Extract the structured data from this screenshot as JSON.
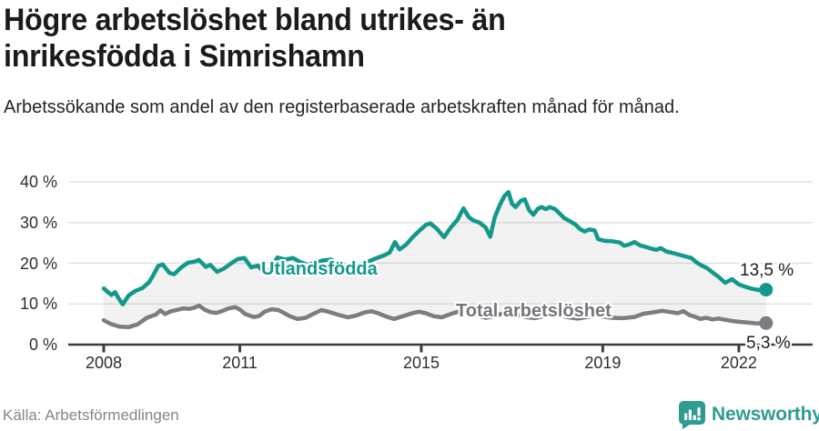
{
  "header": {
    "title": "Högre arbetslöshet bland utrikes- än inrikesfödda i Simrishamn",
    "subtitle": "Arbetssökande som andel av den registerbaserade arbetskraften månad för månad."
  },
  "footer": {
    "source": "Källa: Arbetsförmedlingen",
    "brand": "Newsworthy"
  },
  "colors": {
    "accent_teal": "#12998c",
    "line_gray": "#7c7d82",
    "label_gray": "#75767b",
    "brand_teal": "#2f9c92",
    "axis": "#3d3d3d",
    "grid": "#e4e4e4",
    "band_fill": "rgba(0,0,0,0.05)"
  },
  "chart_data": {
    "type": "line",
    "title": "Högre arbetslöshet bland utrikes- än inrikesfödda i Simrishamn",
    "subtitle": "Arbetssökande som andel av den registerbaserade arbetskraften månad för månad.",
    "grid": true,
    "legend_position": "inline",
    "x_axis": {
      "range": [
        2008,
        2022.6
      ],
      "ticks": [
        {
          "label": "2008",
          "year": 2008
        },
        {
          "label": "2011",
          "year": 2011
        },
        {
          "label": "2015",
          "year": 2015
        },
        {
          "label": "2019",
          "year": 2019
        },
        {
          "label": "2022",
          "year": 2022
        }
      ]
    },
    "y_axis": {
      "unit": "%",
      "range": [
        0,
        40
      ],
      "ticks": [
        {
          "label": "40 %",
          "value": 40
        },
        {
          "label": "30 %",
          "value": 30
        },
        {
          "label": "20 %",
          "value": 20
        },
        {
          "label": "10 %",
          "value": 10
        },
        {
          "label": "0 %",
          "value": 0
        }
      ]
    },
    "series": [
      {
        "name": "Utlandsfödda",
        "color": "#12998c",
        "end_label": "13,5 %",
        "end_value": 13.5,
        "points": [
          [
            2008.0,
            13.8
          ],
          [
            2008.08,
            13.0
          ],
          [
            2008.17,
            12.2
          ],
          [
            2008.25,
            12.9
          ],
          [
            2008.33,
            11.3
          ],
          [
            2008.42,
            9.9
          ],
          [
            2008.55,
            12.1
          ],
          [
            2008.7,
            13.2
          ],
          [
            2008.85,
            13.9
          ],
          [
            2009.0,
            15.3
          ],
          [
            2009.1,
            17.2
          ],
          [
            2009.2,
            19.3
          ],
          [
            2009.3,
            19.7
          ],
          [
            2009.45,
            17.6
          ],
          [
            2009.55,
            17.3
          ],
          [
            2009.7,
            18.9
          ],
          [
            2009.85,
            20.1
          ],
          [
            2010.0,
            20.4
          ],
          [
            2010.1,
            20.8
          ],
          [
            2010.25,
            19.1
          ],
          [
            2010.35,
            19.6
          ],
          [
            2010.5,
            17.9
          ],
          [
            2010.65,
            18.7
          ],
          [
            2010.8,
            19.9
          ],
          [
            2010.95,
            21.0
          ],
          [
            2011.1,
            21.3
          ],
          [
            2011.25,
            19.0
          ],
          [
            2011.4,
            19.4
          ],
          [
            2011.5,
            18.2
          ],
          [
            2011.62,
            17.7
          ],
          [
            2011.83,
            21.4
          ],
          [
            2012.0,
            20.9
          ],
          [
            2012.17,
            21.3
          ],
          [
            2012.33,
            20.3
          ],
          [
            2012.5,
            19.6
          ],
          [
            2012.67,
            20.1
          ],
          [
            2012.83,
            20.7
          ],
          [
            2013.0,
            20.9
          ],
          [
            2013.17,
            20.1
          ],
          [
            2013.33,
            19.4
          ],
          [
            2013.5,
            19.0
          ],
          [
            2013.67,
            19.6
          ],
          [
            2013.83,
            20.4
          ],
          [
            2014.0,
            21.2
          ],
          [
            2014.17,
            21.9
          ],
          [
            2014.3,
            22.6
          ],
          [
            2014.42,
            25.2
          ],
          [
            2014.52,
            23.4
          ],
          [
            2014.67,
            24.6
          ],
          [
            2014.8,
            26.3
          ],
          [
            2014.95,
            27.9
          ],
          [
            2015.1,
            29.4
          ],
          [
            2015.2,
            29.8
          ],
          [
            2015.35,
            28.4
          ],
          [
            2015.5,
            26.4
          ],
          [
            2015.65,
            28.8
          ],
          [
            2015.8,
            30.7
          ],
          [
            2015.93,
            33.5
          ],
          [
            2016.05,
            31.3
          ],
          [
            2016.15,
            30.5
          ],
          [
            2016.28,
            30.0
          ],
          [
            2016.42,
            28.8
          ],
          [
            2016.52,
            26.5
          ],
          [
            2016.62,
            31.3
          ],
          [
            2016.73,
            34.3
          ],
          [
            2016.83,
            36.5
          ],
          [
            2016.92,
            37.5
          ],
          [
            2017.0,
            34.6
          ],
          [
            2017.08,
            33.8
          ],
          [
            2017.2,
            35.4
          ],
          [
            2017.28,
            35.7
          ],
          [
            2017.38,
            33.0
          ],
          [
            2017.47,
            31.9
          ],
          [
            2017.57,
            33.4
          ],
          [
            2017.65,
            33.8
          ],
          [
            2017.75,
            33.3
          ],
          [
            2017.83,
            33.8
          ],
          [
            2017.95,
            33.3
          ],
          [
            2018.05,
            32.2
          ],
          [
            2018.15,
            31.1
          ],
          [
            2018.28,
            30.3
          ],
          [
            2018.4,
            29.5
          ],
          [
            2018.5,
            28.4
          ],
          [
            2018.6,
            27.8
          ],
          [
            2018.7,
            28.3
          ],
          [
            2018.82,
            28.1
          ],
          [
            2018.9,
            25.9
          ],
          [
            2019.05,
            25.5
          ],
          [
            2019.2,
            25.4
          ],
          [
            2019.38,
            25.1
          ],
          [
            2019.47,
            24.3
          ],
          [
            2019.6,
            24.7
          ],
          [
            2019.7,
            25.2
          ],
          [
            2019.82,
            24.4
          ],
          [
            2019.95,
            24.0
          ],
          [
            2020.07,
            23.6
          ],
          [
            2020.18,
            23.3
          ],
          [
            2020.28,
            23.7
          ],
          [
            2020.4,
            22.9
          ],
          [
            2020.55,
            22.5
          ],
          [
            2020.75,
            21.9
          ],
          [
            2020.95,
            21.3
          ],
          [
            2021.07,
            20.2
          ],
          [
            2021.17,
            19.5
          ],
          [
            2021.3,
            18.8
          ],
          [
            2021.45,
            17.5
          ],
          [
            2021.55,
            16.7
          ],
          [
            2021.7,
            15.2
          ],
          [
            2021.85,
            16.1
          ],
          [
            2022.0,
            14.8
          ],
          [
            2022.15,
            14.2
          ],
          [
            2022.3,
            13.7
          ],
          [
            2022.45,
            13.4
          ],
          [
            2022.6,
            13.5
          ]
        ]
      },
      {
        "name": "Total arbetslöshet",
        "color": "#7c7d82",
        "end_label": "5,3 %",
        "end_value": 5.3,
        "points": [
          [
            2008.0,
            6.0
          ],
          [
            2008.15,
            5.1
          ],
          [
            2008.35,
            4.4
          ],
          [
            2008.55,
            4.3
          ],
          [
            2008.75,
            5.0
          ],
          [
            2008.95,
            6.6
          ],
          [
            2009.15,
            7.4
          ],
          [
            2009.25,
            8.4
          ],
          [
            2009.35,
            7.5
          ],
          [
            2009.48,
            8.2
          ],
          [
            2009.6,
            8.5
          ],
          [
            2009.75,
            8.9
          ],
          [
            2009.9,
            8.8
          ],
          [
            2010.0,
            9.1
          ],
          [
            2010.1,
            9.6
          ],
          [
            2010.22,
            8.6
          ],
          [
            2010.35,
            8.0
          ],
          [
            2010.48,
            7.8
          ],
          [
            2010.6,
            8.2
          ],
          [
            2010.75,
            8.9
          ],
          [
            2010.9,
            9.2
          ],
          [
            2011.0,
            8.6
          ],
          [
            2011.12,
            7.5
          ],
          [
            2011.3,
            6.8
          ],
          [
            2011.42,
            7.0
          ],
          [
            2011.55,
            8.1
          ],
          [
            2011.7,
            8.7
          ],
          [
            2011.85,
            8.5
          ],
          [
            2011.97,
            7.8
          ],
          [
            2012.1,
            7.0
          ],
          [
            2012.27,
            6.3
          ],
          [
            2012.45,
            6.6
          ],
          [
            2012.65,
            7.7
          ],
          [
            2012.8,
            8.5
          ],
          [
            2012.95,
            8.1
          ],
          [
            2013.15,
            7.4
          ],
          [
            2013.38,
            6.7
          ],
          [
            2013.55,
            7.1
          ],
          [
            2013.75,
            7.9
          ],
          [
            2013.9,
            8.2
          ],
          [
            2014.05,
            7.7
          ],
          [
            2014.2,
            7.0
          ],
          [
            2014.4,
            6.3
          ],
          [
            2014.6,
            7.0
          ],
          [
            2014.8,
            7.7
          ],
          [
            2014.95,
            8.1
          ],
          [
            2015.1,
            7.7
          ],
          [
            2015.27,
            7.0
          ],
          [
            2015.45,
            6.7
          ],
          [
            2015.62,
            7.4
          ],
          [
            2015.78,
            8.0
          ],
          [
            2015.92,
            8.3
          ],
          [
            2016.07,
            7.9
          ],
          [
            2016.22,
            7.2
          ],
          [
            2016.42,
            6.6
          ],
          [
            2016.6,
            7.0
          ],
          [
            2016.78,
            7.6
          ],
          [
            2016.93,
            7.9
          ],
          [
            2017.1,
            7.4
          ],
          [
            2017.3,
            6.8
          ],
          [
            2017.5,
            6.5
          ],
          [
            2017.7,
            7.0
          ],
          [
            2017.88,
            7.4
          ],
          [
            2018.05,
            7.2
          ],
          [
            2018.25,
            6.7
          ],
          [
            2018.45,
            6.4
          ],
          [
            2018.65,
            6.8
          ],
          [
            2018.85,
            7.1
          ],
          [
            2019.0,
            6.9
          ],
          [
            2019.2,
            6.6
          ],
          [
            2019.45,
            6.5
          ],
          [
            2019.7,
            6.8
          ],
          [
            2019.9,
            7.6
          ],
          [
            2020.1,
            7.9
          ],
          [
            2020.3,
            8.3
          ],
          [
            2020.5,
            8.0
          ],
          [
            2020.65,
            7.7
          ],
          [
            2020.78,
            8.2
          ],
          [
            2020.9,
            7.3
          ],
          [
            2021.05,
            6.8
          ],
          [
            2021.15,
            6.3
          ],
          [
            2021.28,
            6.6
          ],
          [
            2021.42,
            6.2
          ],
          [
            2021.55,
            6.4
          ],
          [
            2021.7,
            6.1
          ],
          [
            2021.85,
            5.8
          ],
          [
            2022.0,
            5.6
          ],
          [
            2022.2,
            5.4
          ],
          [
            2022.4,
            5.2
          ],
          [
            2022.6,
            5.3
          ]
        ]
      }
    ]
  }
}
